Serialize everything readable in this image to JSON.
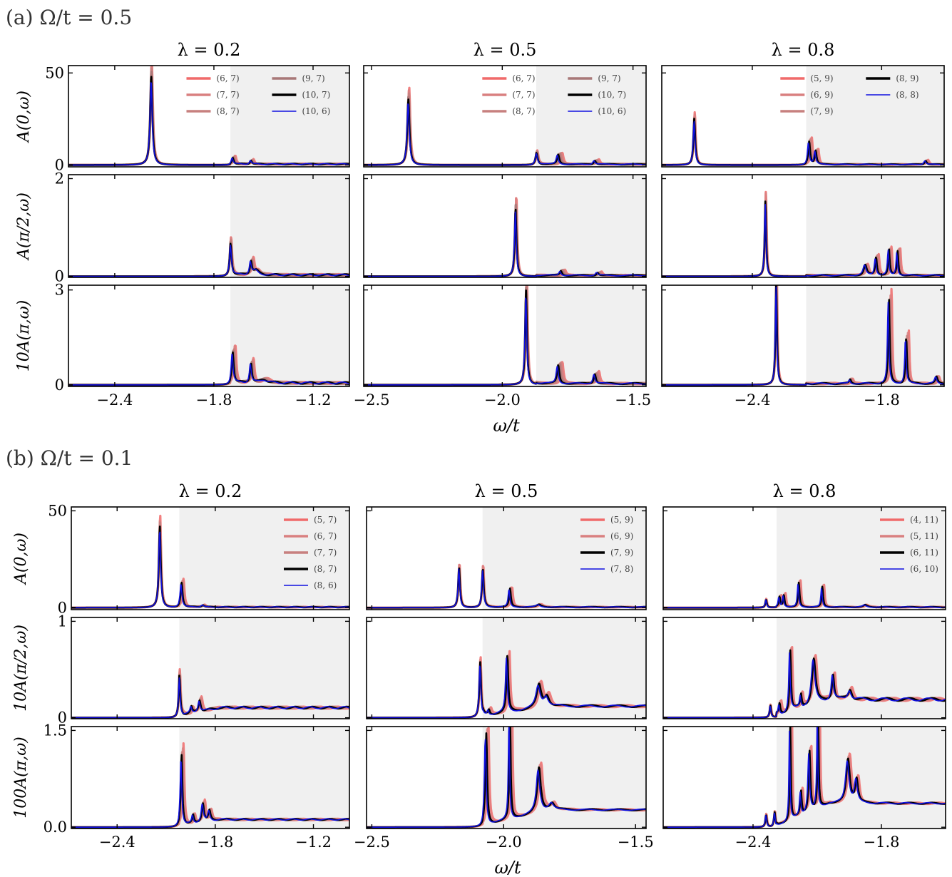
{
  "figure": {
    "part_a_title": "(a) Ω/t = 0.5",
    "part_b_title": "(b) Ω/t = 0.1",
    "xlabel": "ω/t"
  },
  "chart_data": [
    {
      "part": "a",
      "type": "line",
      "column_titles": [
        "λ = 0.2",
        "λ = 0.5",
        "λ = 0.8"
      ],
      "row_ylabels": [
        "A(0,ω)",
        "A(π/2,ω)",
        "10A(π,ω)"
      ],
      "row_ytick_labels": [
        [
          "0",
          "50"
        ],
        [
          "0",
          "2"
        ],
        [
          "0",
          "3"
        ]
      ],
      "row_ylims": [
        [
          -1,
          54
        ],
        [
          -0.02,
          2.08
        ],
        [
          -0.05,
          3.15
        ]
      ],
      "columns": [
        {
          "xlim": [
            -2.68,
            -0.98
          ],
          "xtick_values": [
            -2.4,
            -1.8,
            -1.2
          ],
          "xtick_labels": [
            "−2.4",
            "−1.8",
            "−1.2"
          ],
          "shade_from": -1.7,
          "legend": [
            "(6, 7)",
            "(7, 7)",
            "(8, 7)",
            "(9, 7)",
            "(10, 7)",
            "(10, 6)"
          ],
          "rows": [
            {
              "peaks": [
                [
                  -2.18,
                  46,
                  0.008
                ],
                [
                  -1.69,
                  3.5,
                  0.007
                ],
                [
                  -1.58,
                  2.0,
                  0.007
                ]
              ],
              "bg": 0.5
            },
            {
              "peaks": [
                [
                  -1.7,
                  0.62,
                  0.007
                ],
                [
                  -1.58,
                  0.26,
                  0.007
                ],
                [
                  -1.55,
                  0.09,
                  0.02
                ]
              ],
              "bg": 0.03
            },
            {
              "peaks": [
                [
                  -1.69,
                  0.95,
                  0.007
                ],
                [
                  -1.58,
                  0.6,
                  0.007
                ],
                [
                  -1.5,
                  0.1,
                  0.03
                ]
              ],
              "bg": 0.06
            }
          ]
        },
        {
          "xlim": [
            -2.53,
            -1.45
          ],
          "xtick_values": [
            -2.5,
            -2.0,
            -1.5
          ],
          "xtick_labels": [
            "−2.5",
            "−2.0",
            "−1.5"
          ],
          "shade_from": -1.87,
          "legend": [
            "(6, 7)",
            "(7, 7)",
            "(8, 7)",
            "(9, 7)",
            "(10, 7)",
            "(10, 6)"
          ],
          "rows": [
            {
              "peaks": [
                [
                  -2.36,
                  34,
                  0.005
                ],
                [
                  -1.87,
                  6.0,
                  0.005
                ],
                [
                  -1.79,
                  5.0,
                  0.005
                ],
                [
                  -1.65,
                  2.0,
                  0.005
                ]
              ],
              "bg": 0.4
            },
            {
              "peaks": [
                [
                  -1.95,
                  1.33,
                  0.004
                ],
                [
                  -1.78,
                  0.09,
                  0.005
                ],
                [
                  -1.64,
                  0.06,
                  0.005
                ]
              ],
              "bg": 0.02
            },
            {
              "peaks": [
                [
                  -1.91,
                  2.85,
                  0.004
                ],
                [
                  -1.79,
                  0.55,
                  0.005
                ],
                [
                  -1.65,
                  0.3,
                  0.005
                ]
              ],
              "bg": 0.04
            }
          ]
        },
        {
          "xlim": [
            -2.82,
            -1.51
          ],
          "xtick_values": [
            -2.4,
            -1.8
          ],
          "xtick_labels": [
            "−2.4",
            "−1.8"
          ],
          "shade_from": -2.15,
          "legend": [
            "(5, 9)",
            "(6, 9)",
            "(7, 9)",
            "(8, 9)",
            "(8, 8)"
          ],
          "rows": [
            {
              "peaks": [
                [
                  -2.67,
                  24,
                  0.005
                ],
                [
                  -2.14,
                  12,
                  0.005
                ],
                [
                  -2.11,
                  7.0,
                  0.005
                ],
                [
                  -1.6,
                  2.0,
                  0.006
                ]
              ],
              "bg": 0.3
            },
            {
              "peaks": [
                [
                  -2.34,
                  1.48,
                  0.004
                ],
                [
                  -1.88,
                  0.2,
                  0.008
                ],
                [
                  -1.83,
                  0.35,
                  0.005
                ],
                [
                  -1.77,
                  0.5,
                  0.004
                ],
                [
                  -1.73,
                  0.47,
                  0.004
                ]
              ],
              "bg": 0.02
            },
            {
              "peaks": [
                [
                  -2.29,
                  3.15,
                  0.004
                ],
                [
                  -1.95,
                  0.12,
                  0.005
                ],
                [
                  -1.77,
                  2.55,
                  0.004
                ],
                [
                  -1.69,
                  1.4,
                  0.004
                ],
                [
                  -1.55,
                  0.2,
                  0.006
                ]
              ],
              "bg": 0.04
            }
          ]
        }
      ]
    },
    {
      "part": "b",
      "type": "line",
      "column_titles": [
        "λ = 0.2",
        "λ = 0.5",
        "λ = 0.8"
      ],
      "row_ylabels": [
        "A(0,ω)",
        "10A(π/2,ω)",
        "100A(π,ω)"
      ],
      "row_ytick_labels": [
        [
          "0",
          "50"
        ],
        [
          "0",
          "1"
        ],
        [
          "0.0",
          "1.5"
        ]
      ],
      "row_ylims": [
        [
          -1,
          52
        ],
        [
          -0.01,
          1.04
        ],
        [
          -0.02,
          1.56
        ]
      ],
      "columns": [
        {
          "xlim": [
            -2.68,
            -0.98
          ],
          "xtick_values": [
            -2.4,
            -1.8,
            -1.2
          ],
          "xtick_labels": [
            "−2.4",
            "−1.8",
            "−1.2"
          ],
          "shade_from": -2.02,
          "legend": [
            "(5, 7)",
            "(6, 7)",
            "(7, 7)",
            "(8, 7)",
            "(8, 6)"
          ],
          "rows": [
            {
              "peaks": [
                [
                  -2.14,
                  40,
                  0.007
                ],
                [
                  -2.01,
                  12,
                  0.007
                ],
                [
                  -1.88,
                  1.0,
                  0.01
                ]
              ],
              "bg": 0.3
            },
            {
              "peaks": [
                [
                  -2.02,
                  0.4,
                  0.006
                ],
                [
                  -1.95,
                  0.06,
                  0.006
                ],
                [
                  -1.9,
                  0.12,
                  0.008
                ]
              ],
              "bg": 0.02,
              "ramp": 0.085
            },
            {
              "peaks": [
                [
                  -2.01,
                  1.05,
                  0.006
                ],
                [
                  -1.94,
                  0.12,
                  0.006
                ],
                [
                  -1.88,
                  0.28,
                  0.008
                ],
                [
                  -1.84,
                  0.15,
                  0.008
                ]
              ],
              "bg": 0.02,
              "ramp": 0.1
            }
          ]
        },
        {
          "xlim": [
            -2.52,
            -1.46
          ],
          "xtick_values": [
            -2.5,
            -2.0,
            -1.5
          ],
          "xtick_labels": [
            "−2.5",
            "−2.0",
            "−1.5"
          ],
          "shade_from": -2.08,
          "legend": [
            "(5, 9)",
            "(6, 9)",
            "(7, 9)",
            "(7, 8)"
          ],
          "rows": [
            {
              "peaks": [
                [
                  -2.17,
                  20,
                  0.004
                ],
                [
                  -2.08,
                  19,
                  0.004
                ],
                [
                  -1.98,
                  9.0,
                  0.004
                ],
                [
                  -1.87,
                  1.2,
                  0.01
                ]
              ],
              "bg": 0.3
            },
            {
              "peaks": [
                [
                  -2.09,
                  0.55,
                  0.004
                ],
                [
                  -2.06,
                  0.05,
                  0.004
                ],
                [
                  -1.99,
                  0.55,
                  0.004
                ],
                [
                  -1.87,
                  0.22,
                  0.01
                ],
                [
                  -1.84,
                  0.1,
                  0.01
                ]
              ],
              "bg": 0.02,
              "ramp": 0.1
            },
            {
              "peaks": [
                [
                  -2.07,
                  1.35,
                  0.004
                ],
                [
                  -1.98,
                  1.55,
                  0.003
                ],
                [
                  -1.87,
                  0.65,
                  0.008
                ],
                [
                  -1.82,
                  0.1,
                  0.01
                ]
              ],
              "bg": 0.02,
              "ramp": 0.25
            }
          ]
        },
        {
          "xlim": [
            -2.82,
            -1.5
          ],
          "xtick_values": [
            -2.4,
            -1.8
          ],
          "xtick_labels": [
            "−2.4",
            "−1.8"
          ],
          "shade_from": -2.29,
          "legend": [
            "(4, 11)",
            "(5, 11)",
            "(6, 11)",
            "(6, 10)"
          ],
          "rows": [
            {
              "peaks": [
                [
                  -2.34,
                  4.0,
                  0.004
                ],
                [
                  -2.28,
                  5.0,
                  0.004
                ],
                [
                  -2.26,
                  6.0,
                  0.004
                ],
                [
                  -2.19,
                  12,
                  0.004
                ],
                [
                  -2.08,
                  10,
                  0.004
                ],
                [
                  -1.88,
                  1.0,
                  0.01
                ]
              ],
              "bg": 0.3
            },
            {
              "peaks": [
                [
                  -2.32,
                  0.12,
                  0.004
                ],
                [
                  -2.28,
                  0.1,
                  0.004
                ],
                [
                  -2.23,
                  0.6,
                  0.004
                ],
                [
                  -2.18,
                  0.12,
                  0.004
                ],
                [
                  -2.12,
                  0.45,
                  0.01
                ],
                [
                  -2.03,
                  0.25,
                  0.006
                ],
                [
                  -1.95,
                  0.1,
                  0.01
                ]
              ],
              "bg": 0.03,
              "ramp": 0.16
            },
            {
              "peaks": [
                [
                  -2.34,
                  0.18,
                  0.004
                ],
                [
                  -2.3,
                  0.22,
                  0.004
                ],
                [
                  -2.23,
                  1.4,
                  0.003
                ],
                [
                  -2.18,
                  0.35,
                  0.004
                ],
                [
                  -2.14,
                  0.9,
                  0.005
                ],
                [
                  -2.1,
                  1.45,
                  0.003
                ],
                [
                  -1.96,
                  0.65,
                  0.01
                ],
                [
                  -1.92,
                  0.35,
                  0.008
                ]
              ],
              "bg": 0.02,
              "ramp": 0.35
            }
          ]
        }
      ]
    }
  ],
  "colors": {
    "series": [
      "#f06a6a",
      "#d98080",
      "#c7807f",
      "#a87878",
      "#000000",
      "#1010e0"
    ],
    "shade": "#f0f0f0",
    "peak_dark_red": "#c02020"
  }
}
